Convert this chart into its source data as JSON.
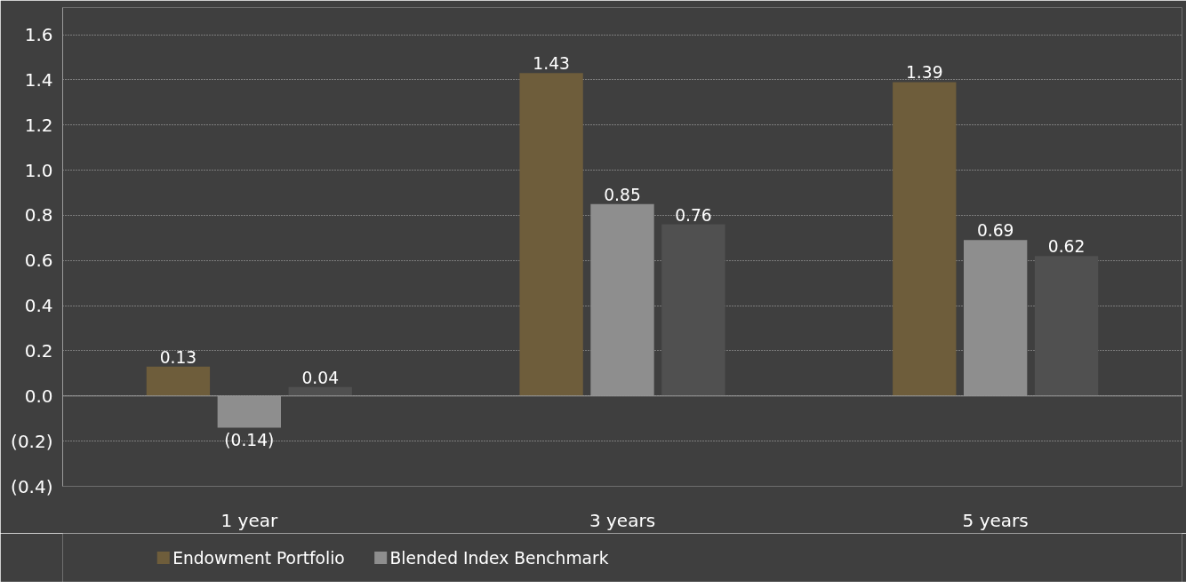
{
  "chart_data": {
    "type": "bar",
    "categories": [
      "1 year",
      "3 years",
      "5 years"
    ],
    "series": [
      {
        "name": "Endowment Portfolio",
        "color": "#6e5d3b",
        "values": [
          0.13,
          1.43,
          1.39
        ],
        "value_labels": [
          "0.13",
          "1.43",
          "1.39"
        ]
      },
      {
        "name": "Blended Index Benchmark",
        "color": "#8e8e8e",
        "values": [
          -0.14,
          0.85,
          0.69
        ],
        "value_labels": [
          "(0.14)",
          "0.85",
          "0.69"
        ]
      },
      {
        "color": "#505050",
        "values": [
          0.04,
          0.76,
          0.62
        ],
        "value_labels": [
          "0.04",
          "0.76",
          "0.62"
        ]
      }
    ],
    "ylim": [
      -0.4,
      1.72
    ],
    "yticks": [
      {
        "value": -0.4,
        "label": "(0.4)"
      },
      {
        "value": -0.2,
        "label": "(0.2)"
      },
      {
        "value": 0,
        "label": "0.0"
      },
      {
        "value": 0.2,
        "label": "0.2"
      },
      {
        "value": 0.4,
        "label": "0.4"
      },
      {
        "value": 0.6,
        "label": "0.6"
      },
      {
        "value": 0.8,
        "label": "0.8"
      },
      {
        "value": 1.0,
        "label": "1.0"
      },
      {
        "value": 1.2,
        "label": "1.2"
      },
      {
        "value": 1.4,
        "label": "1.4"
      },
      {
        "value": 1.6,
        "label": "1.6"
      }
    ],
    "grid": "y",
    "legend": "bottom"
  }
}
